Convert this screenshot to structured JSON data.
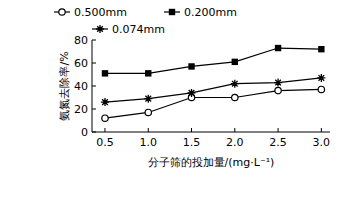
{
  "chart_data": {
    "type": "line",
    "x_label": "分子筛的投加量/(mg·L⁻¹)",
    "y_label": "氨氮去除率/%",
    "x": [
      0.5,
      1.0,
      1.5,
      2.0,
      2.5,
      3.0
    ],
    "series": [
      {
        "name": "0.500mm",
        "color": "#000000",
        "marker": "circle-open",
        "line_style": "solid",
        "values": [
          12,
          17,
          30,
          30,
          36,
          37
        ]
      },
      {
        "name": "0.200mm",
        "color": "#000000",
        "marker": "square",
        "line_style": "solid",
        "values": [
          51,
          51,
          57,
          61,
          73,
          72
        ]
      },
      {
        "name": "0.074mm",
        "color": "#000000",
        "marker": "star",
        "line_style": "solid",
        "values": [
          26,
          29,
          34,
          42,
          43,
          47
        ]
      }
    ],
    "xlim": [
      0.35,
      3.1
    ],
    "xticks": [
      0.5,
      {
        "value": 1,
        "label": "1.0"
      },
      1.5,
      {
        "value": 2,
        "label": "2.0"
      },
      2.5,
      {
        "value": 3,
        "label": "3.0"
      }
    ],
    "ylim": [
      0,
      80
    ],
    "yticks": [
      0,
      20,
      40,
      60,
      80
    ],
    "grid": false,
    "legend": "top"
  }
}
